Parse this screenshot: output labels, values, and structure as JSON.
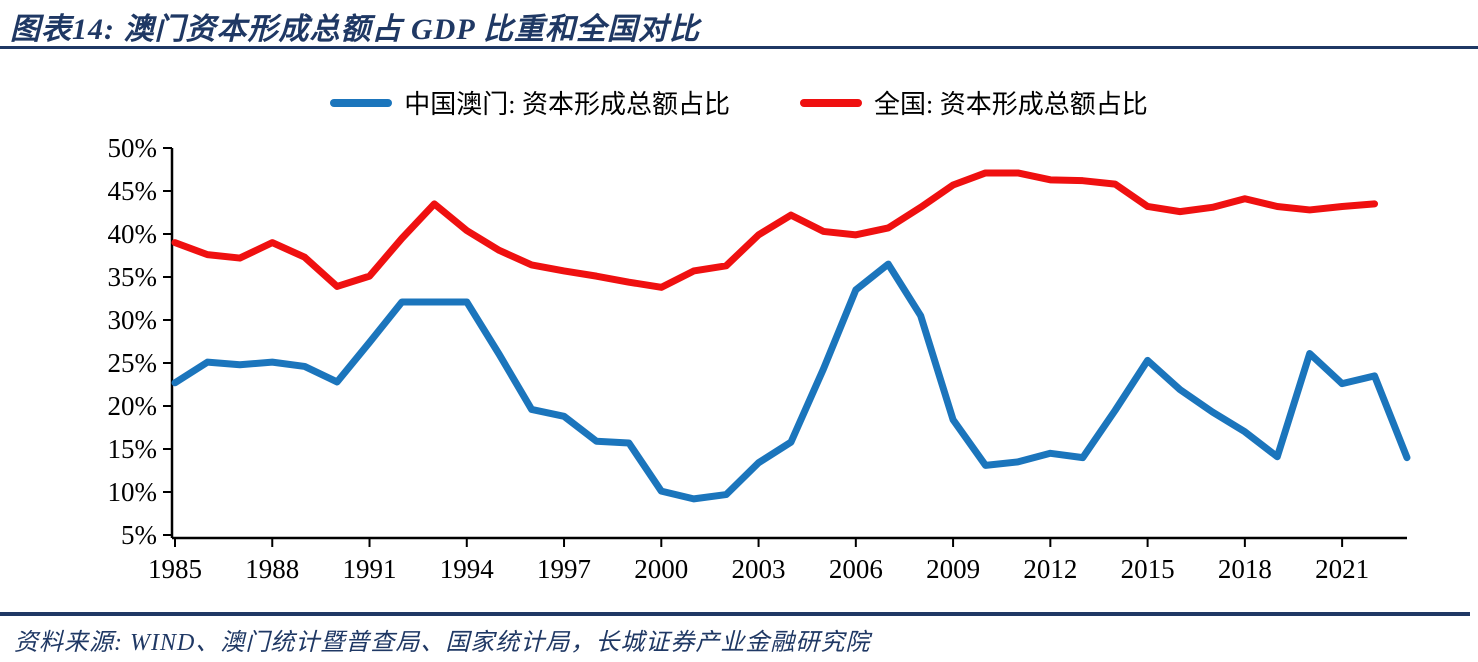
{
  "header": {
    "title": "图表14:  澳门资本形成总额占 GDP 比重和全国对比"
  },
  "legend": [
    {
      "label": "中国澳门: 资本形成总额占比",
      "color": "#1B75BC"
    },
    {
      "label": "全国: 资本形成总额占比",
      "color": "#EF1010"
    }
  ],
  "source": "资料来源:  WIND、澳门统计暨普查局、国家统计局，长城证券产业金融研究院",
  "colors": {
    "accent_navy": "#1F3864",
    "macau_line": "#1B75BC",
    "national_line": "#EF1010",
    "axis": "#000000"
  },
  "chart_data": {
    "type": "line",
    "title": "澳门资本形成总额占 GDP 比重和全国对比",
    "x": [
      1985,
      1986,
      1987,
      1988,
      1989,
      1990,
      1991,
      1992,
      1993,
      1994,
      1995,
      1996,
      1997,
      1998,
      1999,
      2000,
      2001,
      2002,
      2003,
      2004,
      2005,
      2006,
      2007,
      2008,
      2009,
      2010,
      2011,
      2012,
      2013,
      2014,
      2015,
      2016,
      2017,
      2018,
      2019,
      2020,
      2021,
      2022,
      2023
    ],
    "series": [
      {
        "name": "中国澳门: 资本形成总额占比",
        "color": "#1B75BC",
        "values": [
          22.7,
          25.1,
          24.8,
          25.1,
          24.6,
          22.8,
          27.4,
          32.1,
          32.1,
          32.1,
          26.0,
          19.6,
          18.8,
          15.9,
          15.7,
          10.1,
          9.2,
          9.7,
          13.4,
          15.8,
          24.3,
          33.5,
          36.5,
          30.5,
          18.4,
          13.1,
          13.5,
          14.5,
          14.0,
          19.5,
          25.3,
          21.9,
          19.3,
          17.0,
          14.1,
          26.1,
          22.6,
          23.5,
          14.0
        ]
      },
      {
        "name": "全国: 资本形成总额占比",
        "color": "#EF1010",
        "values": [
          39.0,
          37.6,
          37.2,
          39.0,
          37.3,
          33.9,
          35.1,
          39.5,
          43.5,
          40.4,
          38.1,
          36.4,
          35.7,
          35.1,
          34.4,
          33.8,
          35.7,
          36.3,
          39.9,
          42.2,
          40.3,
          39.9,
          40.7,
          43.1,
          45.7,
          47.1,
          47.1,
          46.3,
          46.2,
          45.8,
          43.2,
          42.6,
          43.1,
          44.1,
          43.2,
          42.8,
          43.2,
          43.5,
          null
        ]
      }
    ],
    "xticks": [
      1985,
      1988,
      1991,
      1994,
      1997,
      2000,
      2003,
      2006,
      2009,
      2012,
      2015,
      2018,
      2021
    ],
    "ytick_values": [
      5,
      10,
      15,
      20,
      25,
      30,
      35,
      40,
      45,
      50
    ],
    "yticks": [
      "5%",
      "10%",
      "15%",
      "20%",
      "25%",
      "30%",
      "35%",
      "40%",
      "45%",
      "50%"
    ],
    "xlabel": "",
    "ylabel": "",
    "ylim": [
      5,
      50
    ],
    "grid": false,
    "legend_position": "top"
  }
}
